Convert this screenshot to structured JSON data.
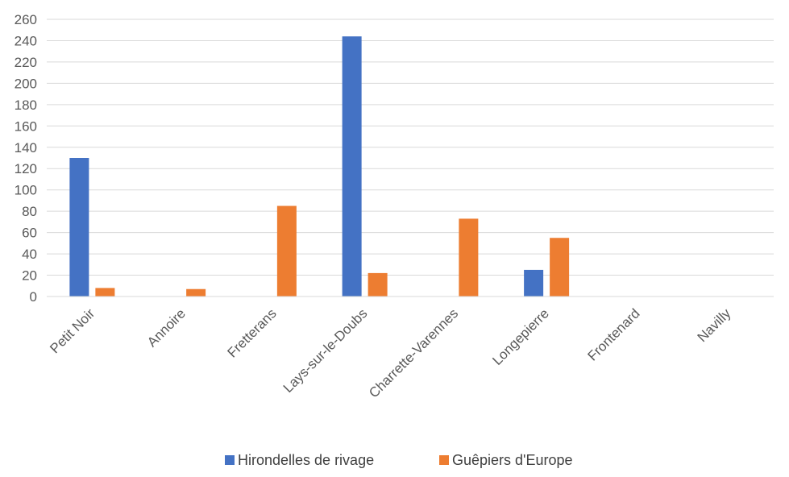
{
  "chart_data": {
    "type": "bar",
    "title": "",
    "xlabel": "",
    "ylabel": "",
    "ylim": [
      0,
      260
    ],
    "y_ticks": [
      0,
      20,
      40,
      60,
      80,
      100,
      120,
      140,
      160,
      180,
      200,
      220,
      240,
      260
    ],
    "grid": "horizontal",
    "legend_position": "bottom",
    "categories": [
      "Petit Noir",
      "Annoire",
      "Fretterans",
      "Lays-sur-le-Doubs",
      "Charrette-Varennes",
      "Longepierre",
      "Frontenard",
      "Navilly"
    ],
    "series": [
      {
        "name": "Hirondelles de rivage",
        "color": "#4472C4",
        "values": [
          130,
          0,
          0,
          244,
          0,
          25,
          0,
          0
        ]
      },
      {
        "name": "Guêpiers d'Europe",
        "color": "#ED7D31",
        "values": [
          8,
          7,
          85,
          22,
          73,
          55,
          0,
          0
        ]
      }
    ]
  }
}
